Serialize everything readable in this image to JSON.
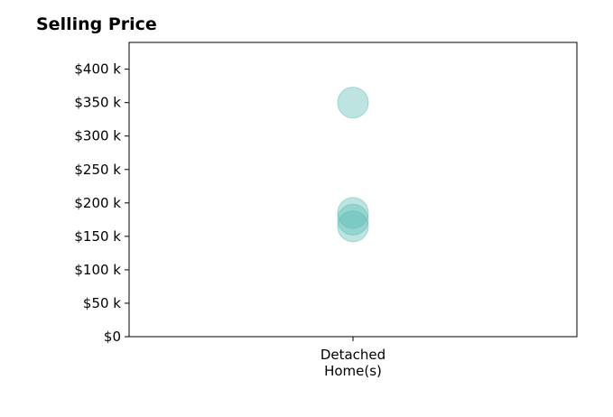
{
  "chart_data": {
    "type": "scatter",
    "title": "Selling Price",
    "xlabel": "",
    "ylabel": "",
    "categories": [
      "Detached\nHome(s)"
    ],
    "y_ticks": [
      0,
      50,
      100,
      150,
      200,
      250,
      300,
      350,
      400
    ],
    "y_tick_labels": [
      "$0",
      "$50 k",
      "$100 k",
      "$150 k",
      "$200 k",
      "$250 k",
      "$300 k",
      "$350 k",
      "$400 k"
    ],
    "ylim": [
      0,
      440
    ],
    "y_unit": "thousands of dollars",
    "grid": false,
    "marker_color": "#5bbcb4",
    "points": [
      {
        "category": "Detached\nHome(s)",
        "y": 350
      },
      {
        "category": "Detached\nHome(s)",
        "y": 185
      },
      {
        "category": "Detached\nHome(s)",
        "y": 175
      },
      {
        "category": "Detached\nHome(s)",
        "y": 165
      }
    ]
  }
}
